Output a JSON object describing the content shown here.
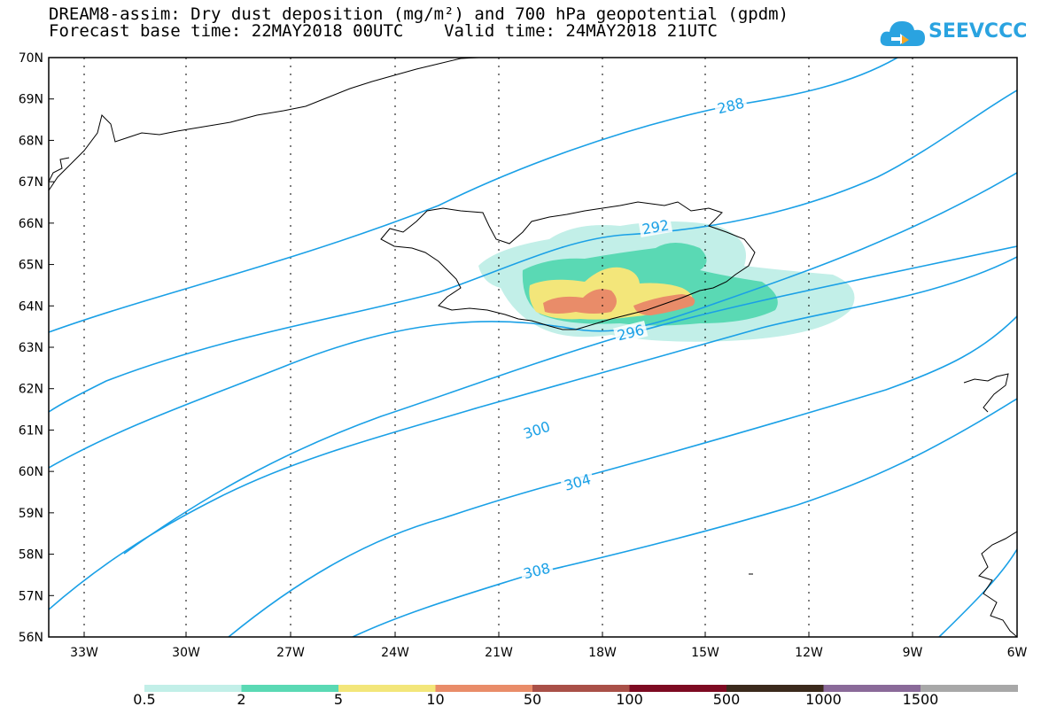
{
  "title": {
    "line1": "DREAM8-assim: Dry dust deposition (mg/m²) and 700 hPa geopotential (gpdm)",
    "line2": "Forecast base time: 22MAY2018 00UTC    Valid time: 24MAY2018 21UTC"
  },
  "logo": {
    "text": "SEEVCCC",
    "color": "#2aa3e0"
  },
  "map": {
    "lon_labels": [
      "33W",
      "30W",
      "27W",
      "24W",
      "21W",
      "18W",
      "15W",
      "12W",
      "9W",
      "6W"
    ],
    "lat_labels": [
      "70N",
      "69N",
      "68N",
      "67N",
      "66N",
      "65N",
      "64N",
      "63N",
      "62N",
      "61N",
      "60N",
      "59N",
      "58N",
      "57N",
      "56N"
    ],
    "contour_labels": [
      "288",
      "292",
      "296",
      "300",
      "304",
      "308"
    ],
    "contour_color": "#1aa0e6"
  },
  "legend": {
    "labels": [
      "0.5",
      "2",
      "5",
      "10",
      "50",
      "100",
      "500",
      "1000",
      "1500"
    ],
    "colors": [
      "#c2efe8",
      "#5ad9b4",
      "#f3e67a",
      "#e98c69",
      "#a95048",
      "#7d0a22",
      "#3b2a1c",
      "#8a6a99",
      "#a8a8a8"
    ]
  }
}
